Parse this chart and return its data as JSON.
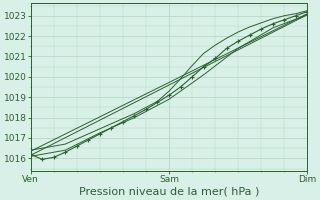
{
  "title": "",
  "xlabel": "Pression niveau de la mer( hPa )",
  "bg_color": "#cce8d8",
  "plot_bg_color": "#d8f0e8",
  "grid_color": "#b0d4bc",
  "line_color": "#2d6030",
  "x_ticks": [
    0,
    48,
    96
  ],
  "x_tick_labels": [
    "Ven",
    "Sam",
    "Dim"
  ],
  "ylim": [
    1015.4,
    1023.6
  ],
  "xlim": [
    0,
    96
  ],
  "yticks": [
    1016,
    1017,
    1018,
    1019,
    1020,
    1021,
    1022,
    1023
  ],
  "line1_x": [
    0,
    4,
    8,
    12,
    16,
    20,
    24,
    28,
    32,
    36,
    40,
    44,
    48,
    52,
    56,
    60,
    64,
    68,
    72,
    76,
    80,
    84,
    88,
    92,
    96
  ],
  "line1_y": [
    1016.2,
    1015.95,
    1016.05,
    1016.3,
    1016.6,
    1016.9,
    1017.2,
    1017.5,
    1017.8,
    1018.1,
    1018.4,
    1018.75,
    1019.1,
    1019.5,
    1020.0,
    1020.5,
    1020.9,
    1021.4,
    1021.75,
    1022.05,
    1022.35,
    1022.6,
    1022.8,
    1023.0,
    1023.2
  ],
  "line2_x": [
    0,
    12,
    24,
    36,
    48,
    60,
    72,
    84,
    96
  ],
  "line2_y": [
    1016.1,
    1016.4,
    1017.25,
    1018.0,
    1018.9,
    1020.1,
    1021.4,
    1022.4,
    1023.05
  ],
  "line3_x": [
    0,
    12,
    24,
    36,
    40,
    44,
    48,
    52,
    56,
    60,
    64,
    68,
    72,
    76,
    80,
    84,
    88,
    92,
    96
  ],
  "line3_y": [
    1016.4,
    1016.7,
    1017.45,
    1018.2,
    1018.5,
    1018.8,
    1019.3,
    1019.9,
    1020.55,
    1021.15,
    1021.55,
    1021.9,
    1022.2,
    1022.45,
    1022.65,
    1022.85,
    1023.0,
    1023.1,
    1023.25
  ],
  "line4_x": [
    0,
    96
  ],
  "line4_y": [
    1016.15,
    1023.05
  ],
  "line5_x": [
    0,
    96
  ],
  "line5_y": [
    1016.35,
    1023.1
  ],
  "marker_x": [
    0,
    4,
    8,
    12,
    16,
    20,
    24,
    28,
    32,
    36,
    40,
    44,
    48,
    52,
    56,
    60,
    64,
    68,
    72,
    76,
    80,
    84,
    88,
    92,
    96
  ],
  "marker_y": [
    1016.2,
    1015.95,
    1016.05,
    1016.3,
    1016.6,
    1016.9,
    1017.2,
    1017.5,
    1017.8,
    1018.1,
    1018.4,
    1018.75,
    1019.1,
    1019.5,
    1020.0,
    1020.5,
    1020.9,
    1021.4,
    1021.75,
    1022.05,
    1022.35,
    1022.6,
    1022.8,
    1023.0,
    1023.2
  ],
  "xlabel_fontsize": 8,
  "tick_fontsize": 6.5
}
